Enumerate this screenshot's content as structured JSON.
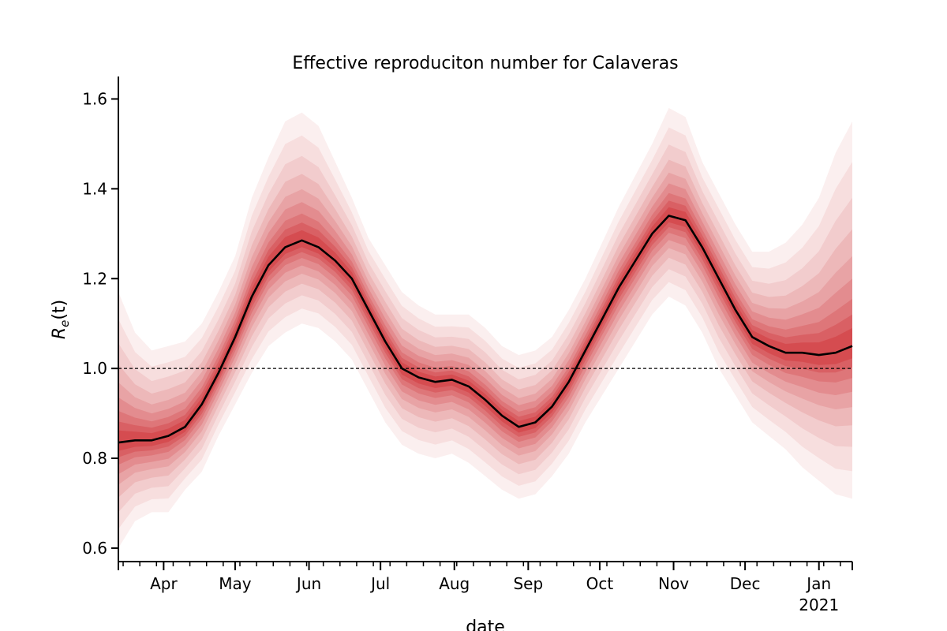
{
  "chart_data": {
    "type": "line",
    "title": "Effective reproduciton number for Calaveras",
    "xlabel": "date",
    "ylabel": "R",
    "ylabel_sub": "e",
    "ylabel_arg": "(t)",
    "ylim": [
      0.57,
      1.65
    ],
    "yticks": [
      0.6,
      0.8,
      1.0,
      1.2,
      1.4,
      1.6
    ],
    "ytick_labels": [
      "0.6",
      "0.8",
      "1.0",
      "1.2",
      "1.4",
      "1.6"
    ],
    "xlim": [
      "2020-03-13",
      "2021-01-15"
    ],
    "xticks": [
      {
        "date": "2020-04-01",
        "label": "Apr"
      },
      {
        "date": "2020-05-01",
        "label": "May"
      },
      {
        "date": "2020-06-01",
        "label": "Jun"
      },
      {
        "date": "2020-07-01",
        "label": "Jul"
      },
      {
        "date": "2020-08-01",
        "label": "Aug"
      },
      {
        "date": "2020-09-01",
        "label": "Sep"
      },
      {
        "date": "2020-10-01",
        "label": "Oct"
      },
      {
        "date": "2020-11-01",
        "label": "Nov"
      },
      {
        "date": "2020-12-01",
        "label": "Dec"
      },
      {
        "date": "2021-01-01",
        "label": "Jan"
      }
    ],
    "xtick_year_label": "2021",
    "reference_line": 1.0,
    "grid": false,
    "band_color": "#cb181d",
    "line_color": "#000000",
    "series": [
      {
        "x": [
          "2020-03-13",
          "2020-03-20",
          "2020-03-27",
          "2020-04-03",
          "2020-04-10",
          "2020-04-17",
          "2020-04-24",
          "2020-05-01",
          "2020-05-08",
          "2020-05-15",
          "2020-05-22",
          "2020-05-29",
          "2020-06-05",
          "2020-06-12",
          "2020-06-19",
          "2020-06-26",
          "2020-07-03",
          "2020-07-10",
          "2020-07-17",
          "2020-07-24",
          "2020-07-31",
          "2020-08-07",
          "2020-08-14",
          "2020-08-21",
          "2020-08-28",
          "2020-09-04",
          "2020-09-11",
          "2020-09-18",
          "2020-09-25",
          "2020-10-02",
          "2020-10-09",
          "2020-10-16",
          "2020-10-23",
          "2020-10-30",
          "2020-11-06",
          "2020-11-13",
          "2020-11-20",
          "2020-11-27",
          "2020-12-04",
          "2020-12-11",
          "2020-12-18",
          "2020-12-25",
          "2021-01-01",
          "2021-01-08",
          "2021-01-15"
        ],
        "median": [
          0.835,
          0.84,
          0.84,
          0.85,
          0.87,
          0.92,
          0.99,
          1.07,
          1.16,
          1.23,
          1.27,
          1.285,
          1.27,
          1.24,
          1.2,
          1.13,
          1.06,
          1.0,
          0.98,
          0.97,
          0.975,
          0.96,
          0.93,
          0.895,
          0.87,
          0.88,
          0.915,
          0.97,
          1.04,
          1.11,
          1.18,
          1.24,
          1.3,
          1.34,
          1.33,
          1.27,
          1.2,
          1.13,
          1.07,
          1.05,
          1.035,
          1.035,
          1.03,
          1.035,
          1.05
        ],
        "lower_95": [
          0.6,
          0.66,
          0.68,
          0.68,
          0.73,
          0.77,
          0.85,
          0.92,
          0.99,
          1.05,
          1.08,
          1.1,
          1.09,
          1.06,
          1.02,
          0.95,
          0.88,
          0.83,
          0.81,
          0.8,
          0.81,
          0.79,
          0.76,
          0.73,
          0.71,
          0.72,
          0.76,
          0.81,
          0.88,
          0.94,
          1.0,
          1.06,
          1.12,
          1.16,
          1.14,
          1.08,
          1.0,
          0.94,
          0.88,
          0.85,
          0.82,
          0.78,
          0.75,
          0.72,
          0.71
        ],
        "upper_95": [
          1.17,
          1.08,
          1.04,
          1.05,
          1.06,
          1.1,
          1.17,
          1.25,
          1.38,
          1.47,
          1.55,
          1.57,
          1.54,
          1.46,
          1.38,
          1.29,
          1.23,
          1.17,
          1.14,
          1.12,
          1.12,
          1.12,
          1.09,
          1.05,
          1.03,
          1.04,
          1.07,
          1.13,
          1.2,
          1.28,
          1.36,
          1.43,
          1.5,
          1.58,
          1.56,
          1.46,
          1.39,
          1.32,
          1.26,
          1.26,
          1.28,
          1.32,
          1.38,
          1.48,
          1.55
        ]
      }
    ]
  }
}
